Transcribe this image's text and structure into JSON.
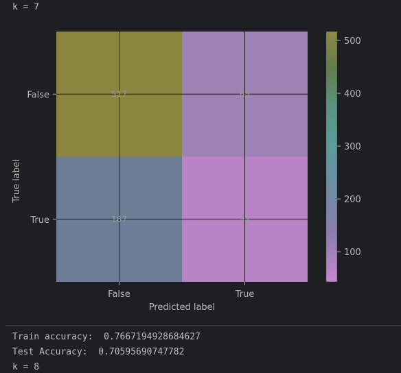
{
  "output": {
    "header": "k = 7",
    "train_label": "Train accuracy:",
    "train_value": "0.7667194928684627",
    "test_label": "Test Accuracy:",
    "test_value": "0.70595690747782",
    "next_header": "k = 8"
  },
  "chart_data": {
    "type": "heatmap",
    "title": "",
    "xlabel": "Predicted label",
    "ylabel": "True label",
    "x_categories": [
      "False",
      "True"
    ],
    "y_categories": [
      "False",
      "True"
    ],
    "cells": [
      {
        "row": 0,
        "col": 0,
        "value": 517,
        "label": "517",
        "color": "#8a853f"
      },
      {
        "row": 0,
        "col": 1,
        "value": 65,
        "label": "65",
        "color": "#9e82b3"
      },
      {
        "row": 1,
        "col": 0,
        "value": 167,
        "label": "167",
        "color": "#6d7d96"
      },
      {
        "row": 1,
        "col": 1,
        "value": 43,
        "label": "43",
        "color": "#b984c6"
      }
    ],
    "colorbar": {
      "ticks": [
        500,
        400,
        300,
        200,
        100
      ],
      "range": [
        43,
        517
      ]
    },
    "grid": true
  }
}
